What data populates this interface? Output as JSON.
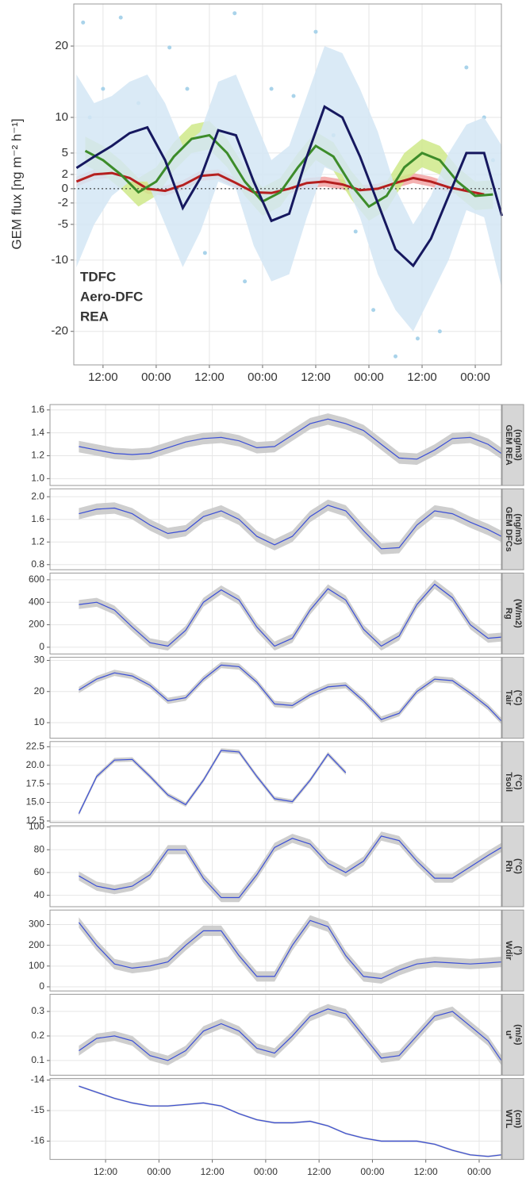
{
  "chart_data": [
    {
      "type": "line",
      "y_label": "GEM flux [ng m⁻² h⁻¹]",
      "xlim": [
        5.4,
        101.9
      ],
      "xticks": [
        {
          "value": 12,
          "label": "12:00"
        },
        {
          "value": 24,
          "label": "00:00"
        },
        {
          "value": 36,
          "label": "12:00"
        },
        {
          "value": 48,
          "label": "00:00"
        },
        {
          "value": 60,
          "label": "12:00"
        },
        {
          "value": 72,
          "label": "00:00"
        },
        {
          "value": 84,
          "label": "12:00"
        },
        {
          "value": 96,
          "label": "00:00"
        }
      ],
      "ylim": [
        -24.7,
        25.9
      ],
      "yticks": [
        20,
        10,
        5,
        2,
        0,
        -2,
        -5,
        -10,
        -20
      ],
      "hline": 0,
      "grid": true,
      "legend": "bottom-left",
      "series": [
        {
          "name": "TDFC",
          "color": "#b51f1f",
          "band_color": "#f2a3a3",
          "x": [
            6,
            10,
            14,
            18,
            22,
            26,
            30,
            34,
            38,
            42,
            46,
            50,
            54,
            58,
            62,
            66,
            70,
            74,
            78,
            82,
            86,
            90,
            94,
            98
          ],
          "values": [
            1,
            2,
            2.2,
            1.5,
            0,
            -0.3,
            0.5,
            1.8,
            2,
            0.8,
            -0.5,
            -0.6,
            0,
            0.8,
            1,
            0.6,
            -0.2,
            0,
            0.8,
            1.5,
            1,
            0.2,
            -0.3,
            -0.8
          ],
          "band": 0.7
        },
        {
          "name": "Aero-DFC",
          "color": "#3d8c2a",
          "band_color": "#cfe98a",
          "x": [
            8,
            12,
            16,
            20,
            24,
            28,
            32,
            36,
            40,
            44,
            48,
            52,
            56,
            60,
            64,
            68,
            72,
            76,
            80,
            84,
            88,
            92,
            96,
            100
          ],
          "values": [
            5.3,
            4,
            2,
            -0.5,
            1,
            4.5,
            7,
            7.5,
            5,
            1,
            -1.8,
            -0.5,
            3,
            6,
            4.5,
            0.5,
            -2.5,
            -1,
            3,
            5,
            4,
            1,
            -1,
            -0.8
          ],
          "band": 2
        },
        {
          "name": "REA",
          "color": "#16185f",
          "band_color": "#d3e6f5",
          "point_color": "#a9d3ea",
          "x": [
            6,
            10,
            14,
            18,
            22,
            26,
            30,
            34,
            38,
            42,
            46,
            50,
            54,
            58,
            62,
            66,
            70,
            74,
            78,
            82,
            86,
            90,
            94,
            98,
            102
          ],
          "values": [
            2.9,
            4.5,
            6,
            7.8,
            8.6,
            4,
            -2.7,
            1.5,
            8.2,
            7.5,
            1,
            -4.5,
            -3.5,
            4.5,
            11.5,
            10,
            4.5,
            -2,
            -8.5,
            -10.8,
            -7,
            -1,
            5,
            5,
            -3.8
          ],
          "upper": [
            16,
            12,
            13,
            15,
            16,
            12,
            6,
            8,
            15,
            16,
            10,
            4,
            6,
            13,
            20,
            19,
            14,
            8,
            0,
            -5,
            -1,
            5,
            9,
            10,
            6
          ],
          "lower": [
            -11,
            -5,
            -1,
            1,
            1,
            -5,
            -11,
            -6,
            1,
            0,
            -8,
            -13,
            -12,
            -4,
            3,
            2,
            -4,
            -12,
            -17,
            -20,
            -15,
            -10,
            -3,
            -4,
            -14
          ],
          "points": {
            "x": [
              7.5,
              9,
              12,
              16,
              20,
              27,
              31,
              35,
              41.7,
              44,
              50,
              55,
              60,
              64,
              69,
              73,
              78,
              83,
              88,
              94,
              98,
              100
            ],
            "y": [
              23.3,
              10,
              14,
              24,
              12,
              19.8,
              14,
              -9,
              24.6,
              -13,
              14,
              13,
              22,
              7.5,
              -6,
              -17,
              -23.5,
              -21,
              -20,
              17,
              10,
              4
            ]
          }
        }
      ]
    },
    {
      "type": "faceted",
      "xlim": [
        -0.5,
        101
      ],
      "xticks": [
        {
          "value": 12,
          "label": "12:00"
        },
        {
          "value": 24,
          "label": "00:00"
        },
        {
          "value": 36,
          "label": "12:00"
        },
        {
          "value": 48,
          "label": "00:00"
        },
        {
          "value": 60,
          "label": "12:00"
        },
        {
          "value": 72,
          "label": "00:00"
        },
        {
          "value": 84,
          "label": "12:00"
        },
        {
          "value": 96,
          "label": "00:00"
        }
      ],
      "x": [
        6,
        10,
        14,
        18,
        22,
        26,
        30,
        34,
        38,
        42,
        46,
        50,
        54,
        58,
        62,
        66,
        70,
        74,
        78,
        82,
        86,
        90,
        94,
        98,
        101
      ],
      "color": "#3b4fd6",
      "band_color": "#c9c9c9",
      "grid": true,
      "panels": [
        {
          "strip": [
            "GEM REA",
            "(ng/m3)"
          ],
          "ylim": [
            0.94,
            1.647
          ],
          "yticks": [
            1.6,
            1.4,
            1.2,
            {
              "value": 1,
              "label": "1.0"
            }
          ],
          "values": [
            1.28,
            1.25,
            1.22,
            1.21,
            1.22,
            1.27,
            1.32,
            1.35,
            1.36,
            1.33,
            1.27,
            1.28,
            1.38,
            1.48,
            1.52,
            1.48,
            1.42,
            1.3,
            1.18,
            1.17,
            1.25,
            1.35,
            1.36,
            1.3,
            1.22
          ],
          "band": 0.05
        },
        {
          "strip": [
            "GEM DFCs",
            "(ng/m3)"
          ],
          "ylim": [
            0.71,
            2.14
          ],
          "yticks": [
            {
              "value": 2,
              "label": "2.0"
            },
            1.6,
            1.2,
            0.8
          ],
          "values": [
            1.7,
            1.78,
            1.8,
            1.7,
            1.5,
            1.35,
            1.4,
            1.65,
            1.75,
            1.6,
            1.3,
            1.15,
            1.3,
            1.65,
            1.85,
            1.75,
            1.4,
            1.08,
            1.1,
            1.5,
            1.75,
            1.7,
            1.55,
            1.42,
            1.3
          ],
          "band": 0.1
        },
        {
          "strip": [
            "Rg",
            "(W/m2)"
          ],
          "ylim": [
            -60,
            660
          ],
          "yticks": [
            600,
            400,
            200,
            0
          ],
          "values": [
            380,
            400,
            330,
            180,
            40,
            10,
            150,
            400,
            510,
            420,
            180,
            10,
            80,
            330,
            520,
            420,
            160,
            10,
            100,
            380,
            560,
            440,
            200,
            80,
            90
          ],
          "band": 40
        },
        {
          "strip": [
            "Tair",
            "(°C)"
          ],
          "ylim": [
            5,
            31
          ],
          "yticks": [
            30,
            20,
            10
          ],
          "values": [
            20.5,
            24,
            26,
            25,
            22,
            17,
            18,
            24,
            28.5,
            28,
            23,
            16,
            15.5,
            19,
            21.5,
            22,
            17,
            11,
            13,
            20,
            24,
            23.5,
            19.5,
            15,
            10.5
          ],
          "band": 1
        },
        {
          "strip": [
            "Tsoil",
            "(°C)"
          ],
          "ylim": [
            12.3,
            23.2
          ],
          "yticks": [
            22.5,
            {
              "value": 20,
              "label": "20.0"
            },
            17.5,
            {
              "value": 15,
              "label": "15.0"
            },
            12.5
          ],
          "values": [
            13.5,
            18.5,
            20.7,
            20.8,
            18.5,
            16,
            14.7,
            18,
            22,
            21.8,
            18.5,
            15.5,
            15.1,
            18,
            21.5,
            19,
            null,
            null,
            null,
            null,
            null,
            null,
            null,
            null,
            null
          ],
          "band": 0.3
        },
        {
          "strip": [
            "Rh",
            "(°C)"
          ],
          "ylim": [
            30,
            101
          ],
          "yticks": [
            100,
            80,
            60,
            40
          ],
          "values": [
            57,
            48,
            45,
            48,
            58,
            80,
            80,
            55,
            38,
            38,
            58,
            82,
            90,
            85,
            68,
            60,
            70,
            92,
            88,
            70,
            55,
            55,
            65,
            75,
            82
          ],
          "band": 4
        },
        {
          "strip": [
            "Wdir",
            "(°)"
          ],
          "ylim": [
            -20,
            370
          ],
          "yticks": [
            300,
            200,
            100,
            0
          ],
          "values": [
            310,
            200,
            110,
            90,
            100,
            120,
            200,
            270,
            270,
            150,
            50,
            50,
            200,
            320,
            290,
            150,
            50,
            40,
            80,
            110,
            120,
            115,
            110,
            115,
            120
          ],
          "band": 25
        },
        {
          "strip": [
            "u*",
            "(m/s)"
          ],
          "ylim": [
            0.04,
            0.37
          ],
          "yticks": [
            0.3,
            0.2,
            0.1
          ],
          "values": [
            0.14,
            0.19,
            0.2,
            0.18,
            0.12,
            0.1,
            0.14,
            0.22,
            0.25,
            0.22,
            0.15,
            0.13,
            0.2,
            0.28,
            0.31,
            0.29,
            0.2,
            0.11,
            0.12,
            0.2,
            0.28,
            0.3,
            0.24,
            0.18,
            0.1
          ],
          "band": 0.02
        },
        {
          "strip": [
            "WTL",
            "(cm)"
          ],
          "ylim": [
            -16.6,
            -13.95
          ],
          "yticks": [
            -14,
            -15,
            -16
          ],
          "values": [
            -14.2,
            -14.4,
            -14.6,
            -14.75,
            -14.85,
            -14.85,
            -14.8,
            -14.75,
            -14.85,
            -15.1,
            -15.3,
            -15.4,
            -15.4,
            -15.35,
            -15.5,
            -15.75,
            -15.9,
            -16,
            -16,
            -16,
            -16.1,
            -16.3,
            -16.45,
            -16.5,
            -16.45
          ],
          "band": 0.03
        }
      ]
    }
  ]
}
